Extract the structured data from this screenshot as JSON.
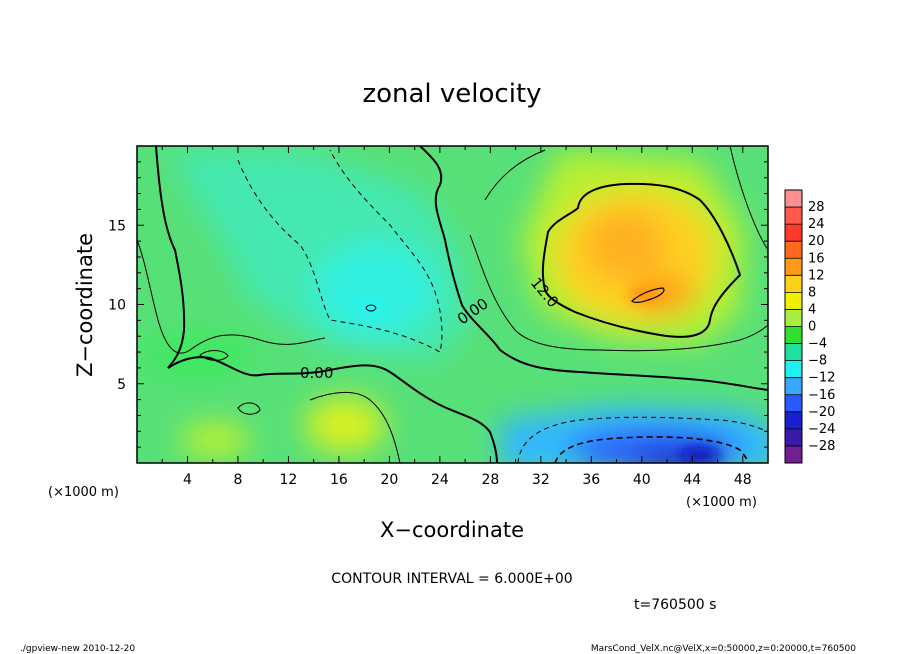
{
  "chart_data": {
    "type": "heatmap",
    "title": "zonal velocity",
    "xlabel": "X−coordinate",
    "ylabel": "Z−coordinate",
    "x_unit": "(×1000 m)",
    "y_unit": "(×1000 m)",
    "xlim": [
      0,
      50
    ],
    "ylim": [
      0,
      20
    ],
    "x_ticks": [
      "4",
      "8",
      "12",
      "16",
      "20",
      "24",
      "28",
      "32",
      "36",
      "40",
      "44",
      "48"
    ],
    "y_ticks": [
      "5",
      "10",
      "15"
    ],
    "colorbar": {
      "labels": [
        "28",
        "24",
        "20",
        "16",
        "12",
        "8",
        "4",
        "0",
        "−4",
        "−8",
        "−12",
        "−16",
        "−20",
        "−24",
        "−28"
      ],
      "colors": [
        "#ff8f8f",
        "#ff5a4c",
        "#ff3a2a",
        "#ff6a1c",
        "#ff9a18",
        "#ffd21a",
        "#f0f000",
        "#a8f040",
        "#30e030",
        "#20e0a0",
        "#20f0f0",
        "#3aa8ff",
        "#2a5aff",
        "#1a20d0",
        "#3a1aa8",
        "#702090"
      ]
    },
    "contour_labels": [
      "0.00",
      "0.00",
      "12.0"
    ],
    "contour_interval": "CONTOUR INTERVAL = 6.000E+00",
    "time": "t=760500 s"
  },
  "footer": {
    "left": "./gpview-new  2010-12-20",
    "right": "MarsCond_VelX.nc@VelX,x=0:50000,z=0:20000,t=760500"
  }
}
